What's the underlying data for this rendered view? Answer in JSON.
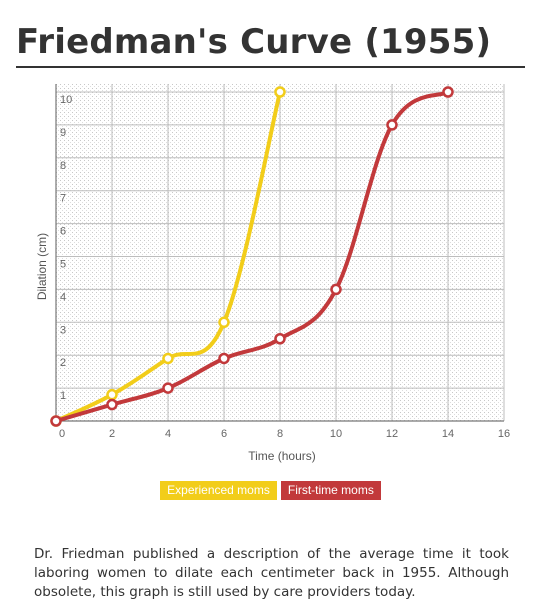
{
  "page": {
    "title": "Friedman's Curve (1955)",
    "caption": "Dr. Friedman published a description of the average time it took laboring women to dilate each centimeter back in 1955. Although obsolete, this graph is still used by care providers today."
  },
  "chart_data": {
    "type": "line",
    "title": "Friedman's Curve (1955)",
    "xlabel": "Time (hours)",
    "ylabel": "Dilation (cm)",
    "xlim": [
      0,
      16
    ],
    "ylim": [
      0,
      10
    ],
    "xticks": [
      0,
      2,
      4,
      6,
      8,
      10,
      12,
      14,
      16
    ],
    "yticks": [
      1,
      2,
      3,
      4,
      5,
      6,
      7,
      8,
      9,
      10
    ],
    "grid": true,
    "legend_position": "bottom-center",
    "series": [
      {
        "name": "Experienced moms",
        "color": "#f2cd1a",
        "points": [
          [
            0,
            0
          ],
          [
            2,
            0.8
          ],
          [
            4,
            1.9
          ],
          [
            6,
            3
          ],
          [
            8,
            10
          ]
        ]
      },
      {
        "name": "First-time moms",
        "color": "#c2393b",
        "points": [
          [
            0,
            0
          ],
          [
            2,
            0.5
          ],
          [
            4,
            1
          ],
          [
            6,
            1.9
          ],
          [
            8,
            2.5
          ],
          [
            10,
            4
          ],
          [
            12,
            9
          ],
          [
            14,
            10
          ]
        ]
      }
    ]
  }
}
